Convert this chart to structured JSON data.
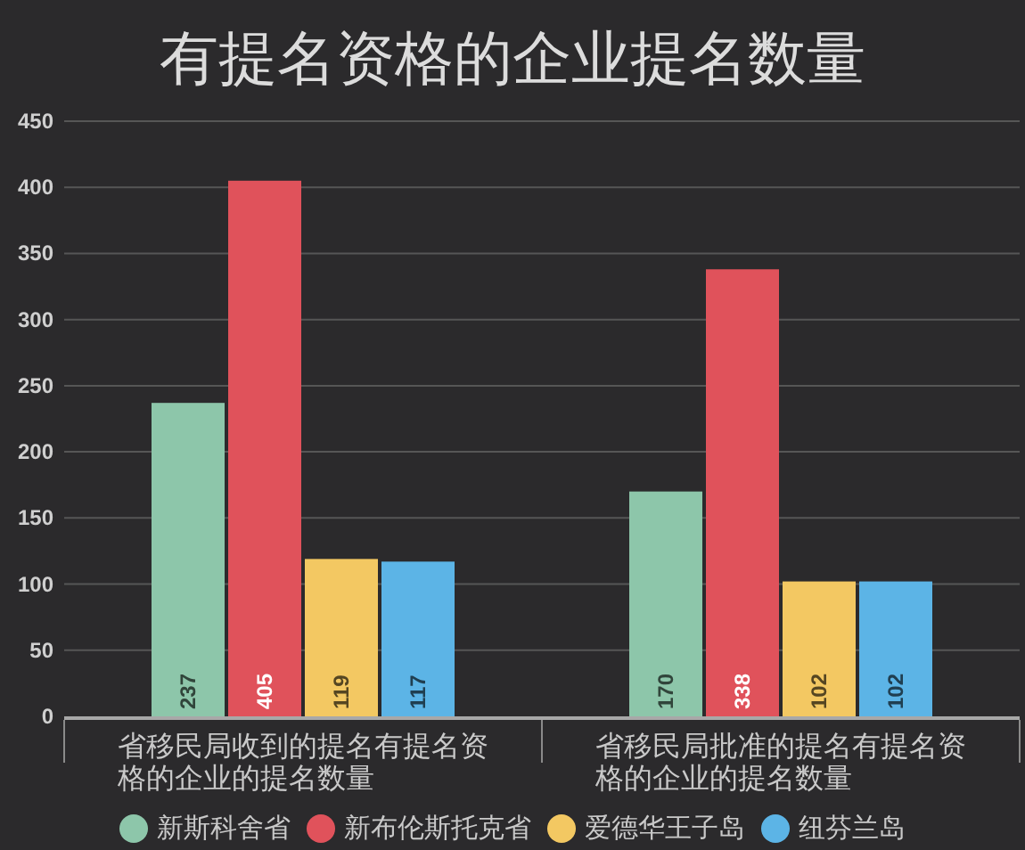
{
  "chart_data": {
    "type": "bar",
    "title": "有提名资格的企业提名数量",
    "categories": [
      "省移民局收到的提名有提名资格的企业的提名数量",
      "省移民局批准的提名有提名资格的企业的提名数量"
    ],
    "series": [
      {
        "name": "新斯科舍省",
        "color": "#8dc6aa",
        "values": [
          237,
          170
        ]
      },
      {
        "name": "新布伦斯托克省",
        "color": "#e0525b",
        "values": [
          405,
          338
        ]
      },
      {
        "name": "爱德华王子岛",
        "color": "#f3c862",
        "values": [
          119,
          102
        ]
      },
      {
        "name": "纽芬兰岛",
        "color": "#5cb4e6",
        "values": [
          117,
          102
        ]
      }
    ],
    "ylim": [
      0,
      450
    ],
    "yticks": [
      0,
      50,
      100,
      150,
      200,
      250,
      300,
      350,
      400,
      450
    ],
    "grid": "y",
    "legend": "bottom",
    "data_labels": true
  }
}
